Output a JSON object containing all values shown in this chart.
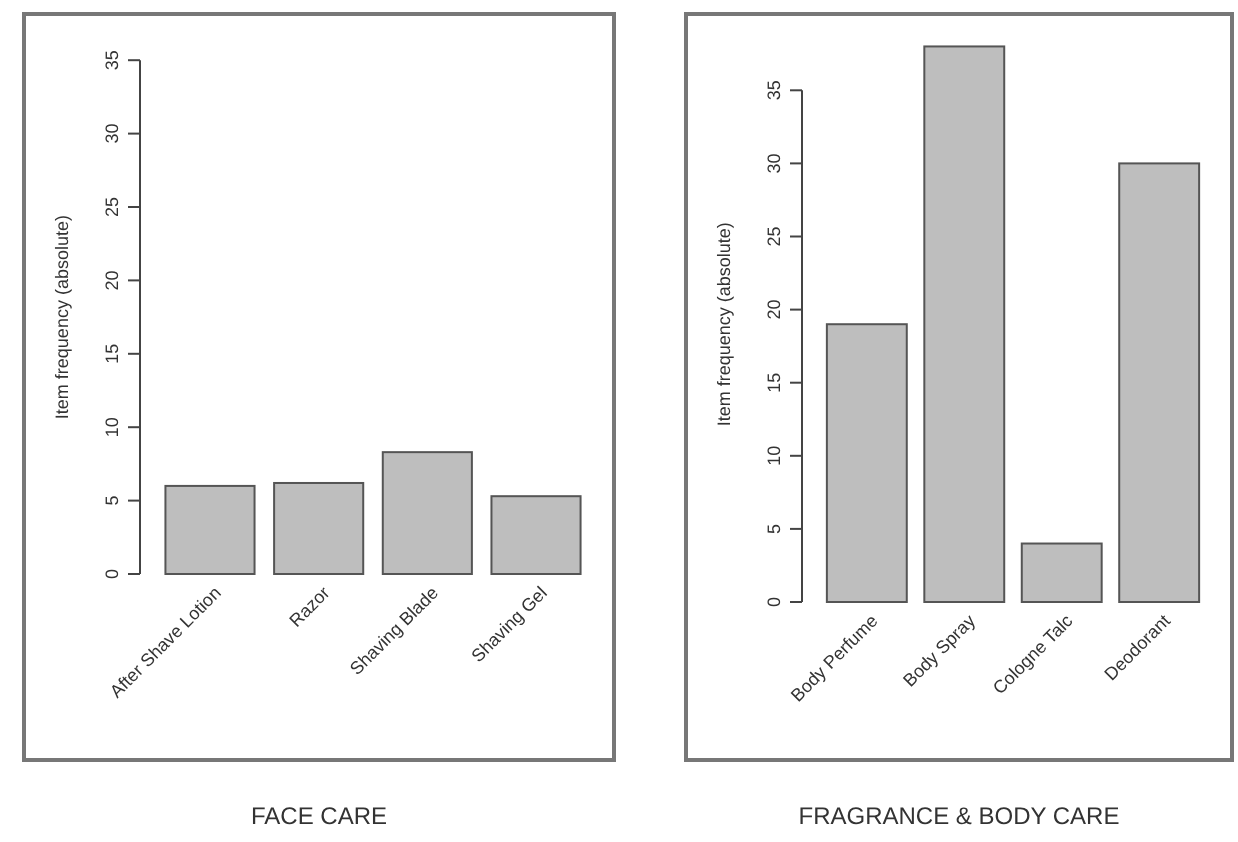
{
  "chart_data": [
    {
      "type": "bar",
      "title": "FACE CARE",
      "ylabel": "Item frequency (absolute)",
      "categories": [
        "After Shave Lotion",
        "Razor",
        "Shaving Blade",
        "Shaving Gel"
      ],
      "values": [
        6,
        6.2,
        8.3,
        5.3
      ],
      "color": "#bebebe",
      "ylim": [
        0,
        35
      ],
      "yticks": [
        0,
        5,
        10,
        15,
        20,
        25,
        30,
        35
      ],
      "grid": false
    },
    {
      "type": "bar",
      "title": "FRAGRANCE & BODY CARE",
      "ylabel": "Item frequency (absolute)",
      "categories": [
        "Body Perfume",
        "Body Spray",
        "Cologne Talc",
        "Deodorant"
      ],
      "values": [
        19,
        38,
        4,
        30
      ],
      "color": "#bebebe",
      "ylim": [
        0,
        38
      ],
      "yticks": [
        0,
        5,
        10,
        15,
        20,
        25,
        30,
        35
      ],
      "grid": false
    }
  ]
}
